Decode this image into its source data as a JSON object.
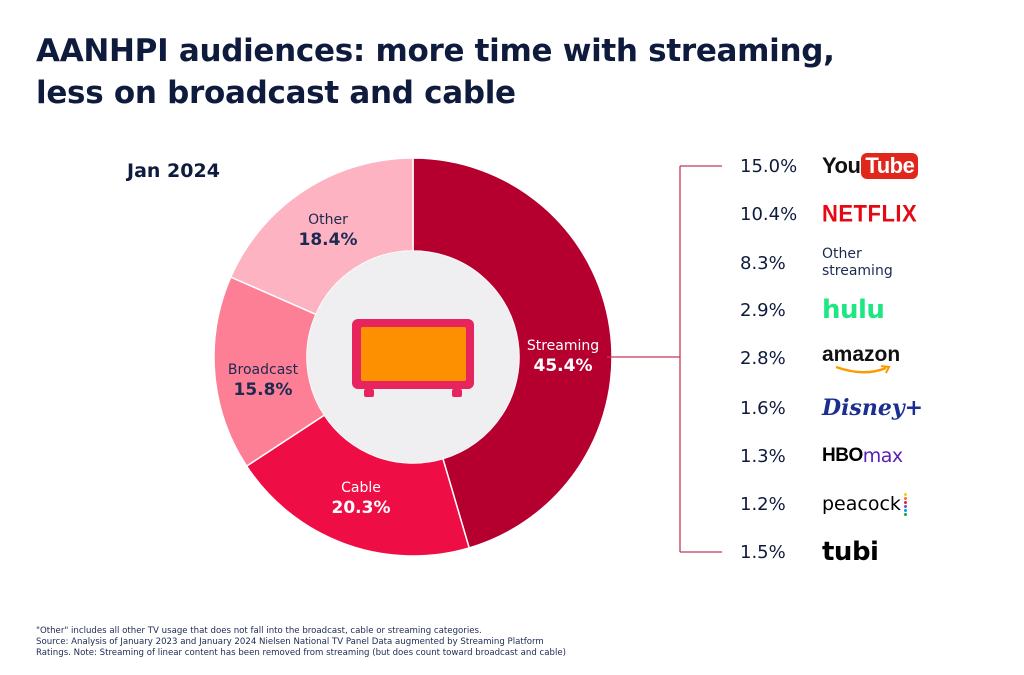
{
  "title_lines": [
    "AANHPI audiences: more time with streaming,",
    "less on broadcast and cable"
  ],
  "period": "Jan 2024",
  "colors": {
    "streaming": "#b5002f",
    "cable": "#ef0d45",
    "broadcast": "#fd7f95",
    "other": "#fdb3c1",
    "tv_frame": "#e8245e",
    "tv_screen": "#fc9000",
    "center": "#efeff1",
    "connector": "#c8375b"
  },
  "chart_data": {
    "type": "pie",
    "title": "AANHPI audiences: more time with streaming, less on broadcast and cable",
    "period": "Jan 2024",
    "slices": [
      {
        "name": "Streaming",
        "value": 45.4,
        "label": "45.4%"
      },
      {
        "name": "Cable",
        "value": 20.3,
        "label": "20.3%"
      },
      {
        "name": "Broadcast",
        "value": 15.8,
        "label": "15.8%"
      },
      {
        "name": "Other",
        "value": 18.4,
        "label": "18.4%"
      }
    ],
    "streaming_breakdown": [
      {
        "platform": "YouTube",
        "value": 15.0,
        "label": "15.0%"
      },
      {
        "platform": "Netflix",
        "value": 10.4,
        "label": "10.4%"
      },
      {
        "platform": "Other streaming",
        "value": 8.3,
        "label": "8.3%"
      },
      {
        "platform": "Hulu",
        "value": 2.9,
        "label": "2.9%"
      },
      {
        "platform": "Amazon",
        "value": 2.8,
        "label": "2.8%"
      },
      {
        "platform": "Disney+",
        "value": 1.6,
        "label": "1.6%"
      },
      {
        "platform": "HBO Max",
        "value": 1.3,
        "label": "1.3%"
      },
      {
        "platform": "Peacock",
        "value": 1.2,
        "label": "1.2%"
      },
      {
        "platform": "Tubi",
        "value": 1.5,
        "label": "1.5%"
      }
    ]
  },
  "logos": {
    "youtube_you": "You",
    "youtube_tube": "Tube",
    "netflix": "NETFLIX",
    "other_streaming": "Other\nstreaming",
    "hulu": "hulu",
    "amazon": "amazon",
    "disney": "Disney+",
    "hbo": "HBO",
    "max": "max",
    "peacock": "peacock",
    "tubi": "tubi"
  },
  "footnote_lines": [
    "\"Other\" includes all other TV usage that does not fall into the broadcast, cable or streaming categories.",
    "Source: Analysis of January 2023 and January 2024 Nielsen National TV Panel Data augmented by Streaming Platform",
    "Ratings. Note: Streaming of linear content has been removed from streaming (but does count toward broadcast and cable)"
  ]
}
